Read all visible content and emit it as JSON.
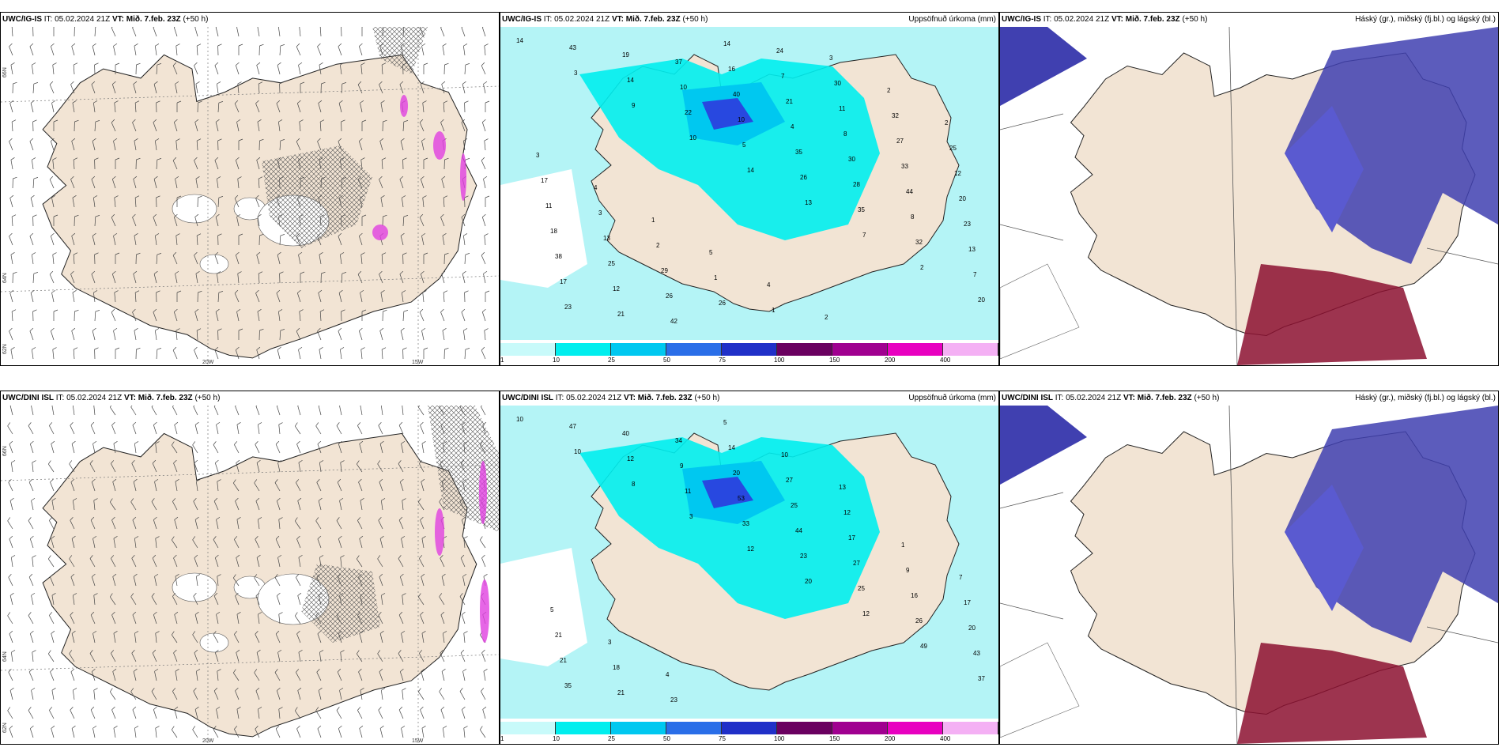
{
  "panels": [
    {
      "model": "UWC/IG-IS",
      "it": "IT: 05.02.2024 21Z",
      "vt_label": "VT:",
      "vt": "Mið. 7.feb. 23Z",
      "lead": "(+50 h)",
      "right": ""
    },
    {
      "model": "UWC/IG-IS",
      "it": "IT: 05.02.2024 21Z",
      "vt_label": "VT:",
      "vt": "Mið. 7.feb. 23Z",
      "lead": "(+50 h)",
      "right": "Uppsöfnuð úrkoma (mm)"
    },
    {
      "model": "UWC/IG-IS",
      "it": "IT: 05.02.2024 21Z",
      "vt_label": "VT:",
      "vt": "Mið. 7.feb. 23Z",
      "lead": "(+50 h)",
      "right": "Háský (gr.), miðský (fj.bl.) og lágský (bl.)"
    },
    {
      "model": "UWC/DINI ISL",
      "it": "IT: 05.02.2024 21Z",
      "vt_label": "VT:",
      "vt": "Mið. 7.feb. 23Z",
      "lead": "(+50 h)",
      "right": ""
    },
    {
      "model": "UWC/DINI ISL",
      "it": "IT: 05.02.2024 21Z",
      "vt_label": "VT:",
      "vt": "Mið. 7.feb. 23Z",
      "lead": "(+50 h)",
      "right": "Uppsöfnuð úrkoma (mm)"
    },
    {
      "model": "UWC/DINI ISL",
      "it": "IT: 05.02.2024 21Z",
      "vt_label": "VT:",
      "vt": "Mið. 7.feb. 23Z",
      "lead": "(+50 h)",
      "right": "Háský (gr.), miðský (fj.bl.) og lágský (bl.)"
    }
  ],
  "axis_labels": {
    "lat66": "66N",
    "lat64": "64N",
    "lat62": "62N",
    "lon20": "20W",
    "lon15": "15W"
  },
  "colorbar": {
    "ticks": [
      "1",
      "10",
      "25",
      "50",
      "75",
      "100",
      "150",
      "200",
      "400"
    ],
    "colors": [
      "#c8fafa",
      "#00eeee",
      "#00c8f0",
      "#2a6ee8",
      "#2030c8",
      "#6a0060",
      "#a00090",
      "#e800c0",
      "#f4b0f4"
    ]
  },
  "precip_numbers_top": [
    "14",
    "3",
    "9",
    "10",
    "14",
    "13",
    "7",
    "2",
    "20",
    "43",
    "14",
    "22",
    "5",
    "26",
    "35",
    "32",
    "7",
    "23",
    "19",
    "10",
    "10",
    "35",
    "28",
    "8",
    "13",
    "17",
    "21",
    "37",
    "40",
    "4",
    "30",
    "44",
    "23",
    "38",
    "12",
    "42",
    "16",
    "21",
    "8",
    "33",
    "20",
    "18",
    "25",
    "26",
    "14",
    "7",
    "11",
    "27",
    "12",
    "11",
    "13",
    "29",
    "26",
    "24",
    "30",
    "32",
    "25",
    "17",
    "3",
    "2",
    "1",
    "1",
    "3",
    "2",
    "2",
    "3",
    "4",
    "1",
    "5",
    "4",
    "2"
  ],
  "precip_numbers_bot": [
    "10",
    "10",
    "8",
    "3",
    "12",
    "20",
    "12",
    "49",
    "37",
    "47",
    "12",
    "11",
    "33",
    "23",
    "25",
    "26",
    "43",
    "35",
    "40",
    "9",
    "53",
    "44",
    "27",
    "16",
    "20",
    "21",
    "21",
    "34",
    "20",
    "25",
    "17",
    "9",
    "17",
    "21",
    "18",
    "23",
    "14",
    "27",
    "12",
    "1",
    "7",
    "5",
    "3",
    "4",
    "5",
    "10",
    "13"
  ],
  "colors": {
    "land": "#f2e4d4",
    "coast": "#222222",
    "cyan": "#00eeee",
    "lightcyan": "#b4f4f6",
    "blue": "#2848e0",
    "darkblue": "#4040b0",
    "darkred": "#8c1030",
    "magenta": "#e040e0"
  }
}
